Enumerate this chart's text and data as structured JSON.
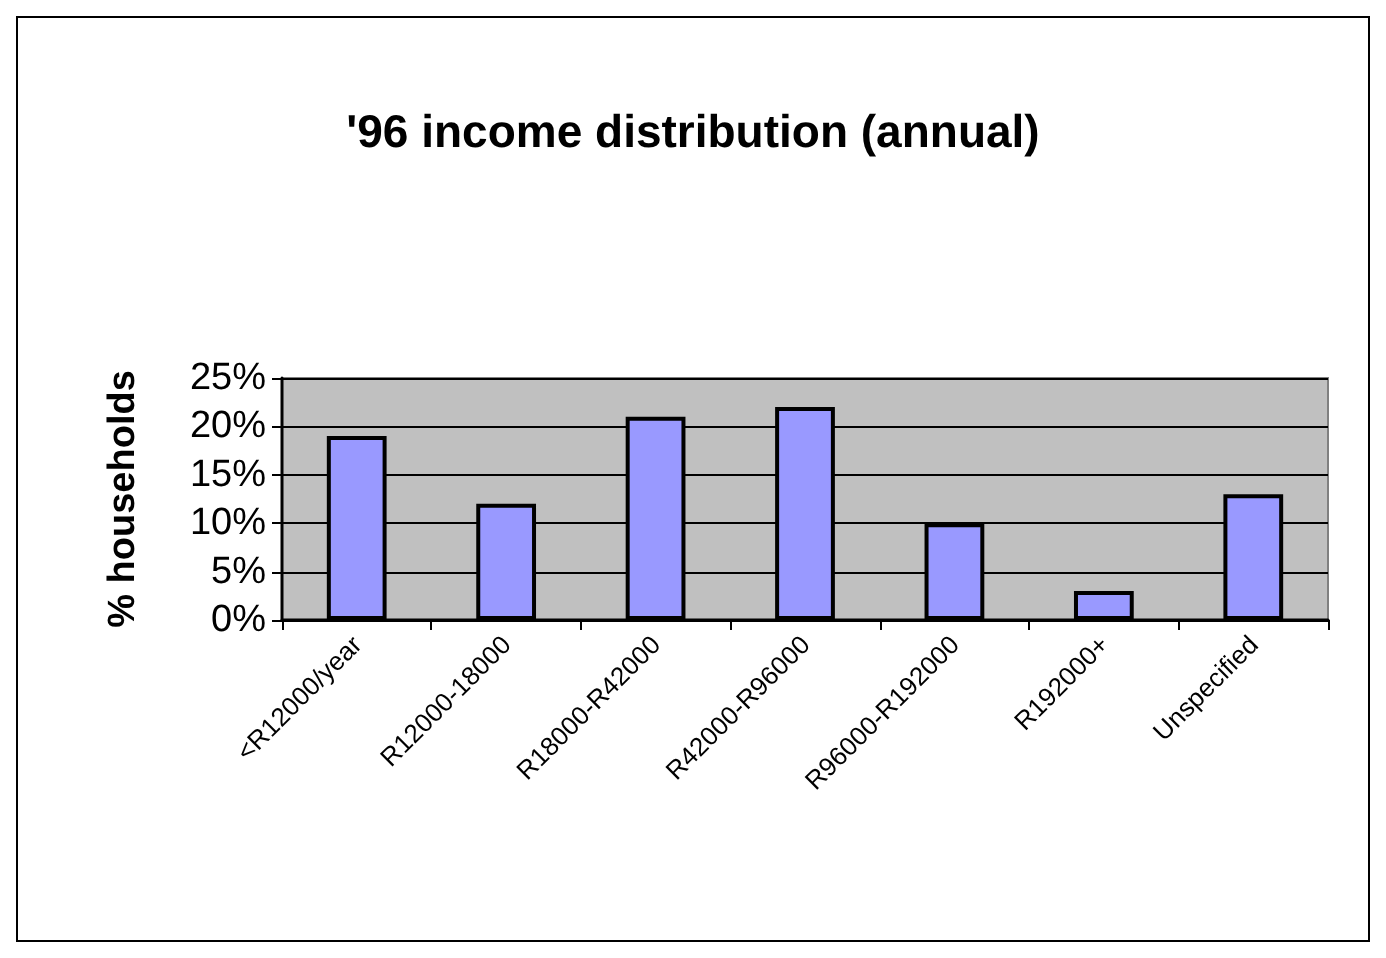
{
  "chart_data": {
    "type": "bar",
    "title": "'96 income distribution (annual)",
    "ylabel": "% households",
    "categories": [
      "<R12000/year",
      "R12000-18000",
      "R18000-R42000",
      "R42000-R96000",
      "R96000-R192000",
      "R192000+",
      "Unspecified"
    ],
    "values": [
      19,
      12,
      21,
      22,
      10,
      3,
      13
    ],
    "color": "#9999ff",
    "ylim": [
      0,
      25
    ],
    "yticks": [
      {
        "value": 0,
        "label": "0%"
      },
      {
        "value": 5,
        "label": "5%"
      },
      {
        "value": 10,
        "label": "10%"
      },
      {
        "value": 15,
        "label": "15%"
      },
      {
        "value": 20,
        "label": "20%"
      },
      {
        "value": 25,
        "label": "25%"
      }
    ],
    "grid": "y"
  }
}
